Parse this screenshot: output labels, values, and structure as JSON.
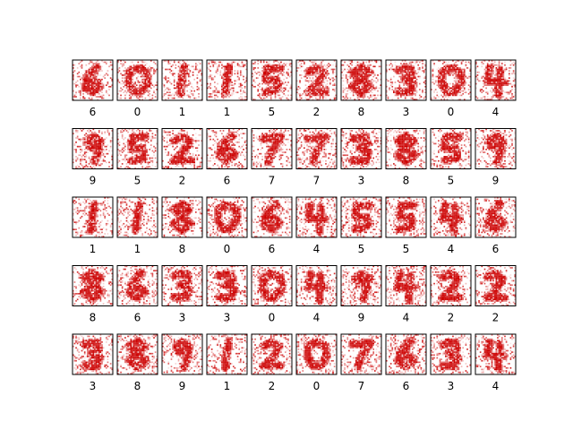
{
  "chart_data": {
    "type": "heatmap",
    "title": "",
    "rows": 5,
    "cols": 10,
    "colormap": [
      "#ffffff",
      "#cc0000"
    ],
    "labels": [
      [
        "6",
        "0",
        "1",
        "1",
        "5",
        "2",
        "8",
        "3",
        "0",
        "4"
      ],
      [
        "9",
        "5",
        "2",
        "6",
        "7",
        "7",
        "3",
        "8",
        "5",
        "9"
      ],
      [
        "1",
        "1",
        "8",
        "0",
        "6",
        "4",
        "5",
        "5",
        "4",
        "6"
      ],
      [
        "8",
        "6",
        "3",
        "3",
        "0",
        "4",
        "9",
        "4",
        "2",
        "2"
      ],
      [
        "3",
        "8",
        "9",
        "1",
        "2",
        "0",
        "7",
        "6",
        "3",
        "4"
      ]
    ]
  }
}
